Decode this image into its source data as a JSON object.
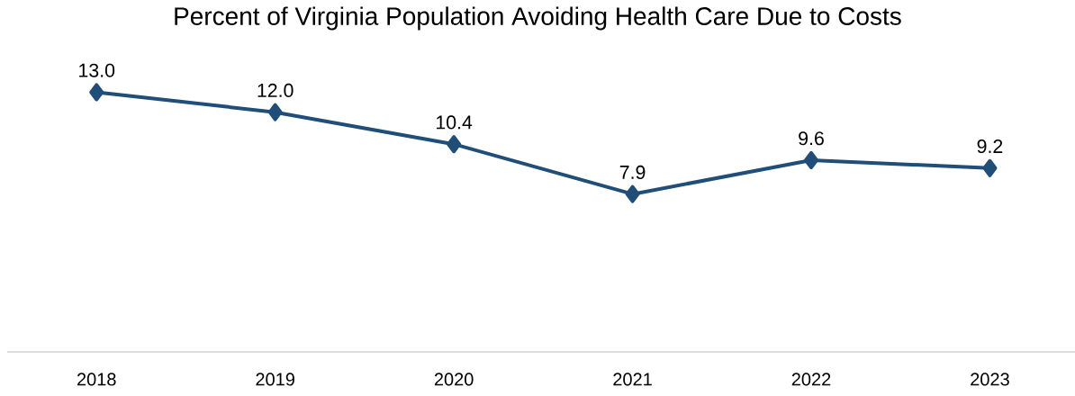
{
  "chart_data": {
    "type": "line",
    "title": "Percent of Virginia Population Avoiding Health Care Due to Costs",
    "categories": [
      "2018",
      "2019",
      "2020",
      "2021",
      "2022",
      "2023"
    ],
    "values": [
      13.0,
      12.0,
      10.4,
      7.9,
      9.6,
      9.2
    ],
    "value_labels": [
      "13.0",
      "12.0",
      "10.4",
      "7.9",
      "9.6",
      "9.2"
    ],
    "color": "#1f4e79",
    "marker": "diamond",
    "tick_labels": "x"
  }
}
